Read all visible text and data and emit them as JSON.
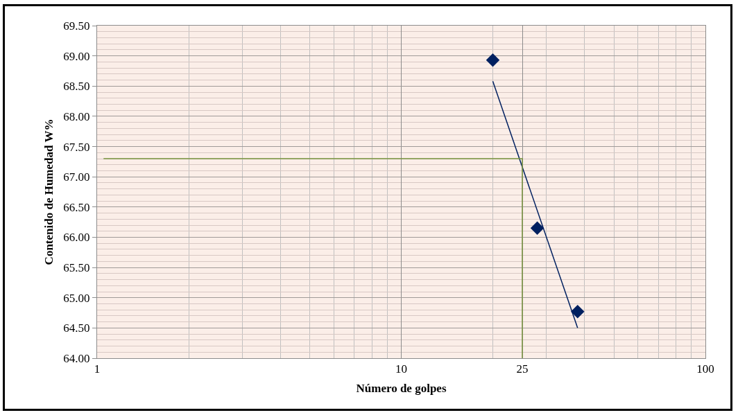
{
  "chart_data": {
    "type": "scatter",
    "xlabel": "Número de golpes",
    "ylabel": "Contenido de Humedad W%",
    "log": "x",
    "grid": true,
    "marker": "diamond",
    "x": [
      20,
      28,
      38
    ],
    "series": [
      {
        "color": "#002060",
        "values": [
          68.93,
          66.15,
          64.77
        ]
      },
      {
        "type": "line",
        "color": "#002060",
        "marker": "none",
        "x": [
          20,
          38
        ],
        "values": [
          68.58,
          64.5
        ]
      },
      {
        "type": "line",
        "color": "#77933c",
        "marker": "none",
        "x": [
          1.05,
          25,
          25
        ],
        "values": [
          67.3,
          67.3,
          64
        ]
      }
    ],
    "xlim": [
      1,
      100
    ],
    "xticks": [
      1,
      10,
      25,
      100
    ],
    "ylim": [
      64,
      69.5
    ],
    "yticks": [
      {
        "value": 64,
        "label": "64.00"
      },
      {
        "value": 64.5,
        "label": "64.50"
      },
      {
        "value": 65,
        "label": "65.00"
      },
      {
        "value": 65.5,
        "label": "65.50"
      },
      {
        "value": 66,
        "label": "66.00"
      },
      {
        "value": 66.5,
        "label": "66.50"
      },
      {
        "value": 67,
        "label": "67.00"
      },
      {
        "value": 67.5,
        "label": "67.50"
      },
      {
        "value": 68,
        "label": "68.00"
      },
      {
        "value": 68.5,
        "label": "68.50"
      },
      {
        "value": 69,
        "label": "69.00"
      },
      {
        "value": 69.5,
        "label": "69.50"
      }
    ]
  }
}
